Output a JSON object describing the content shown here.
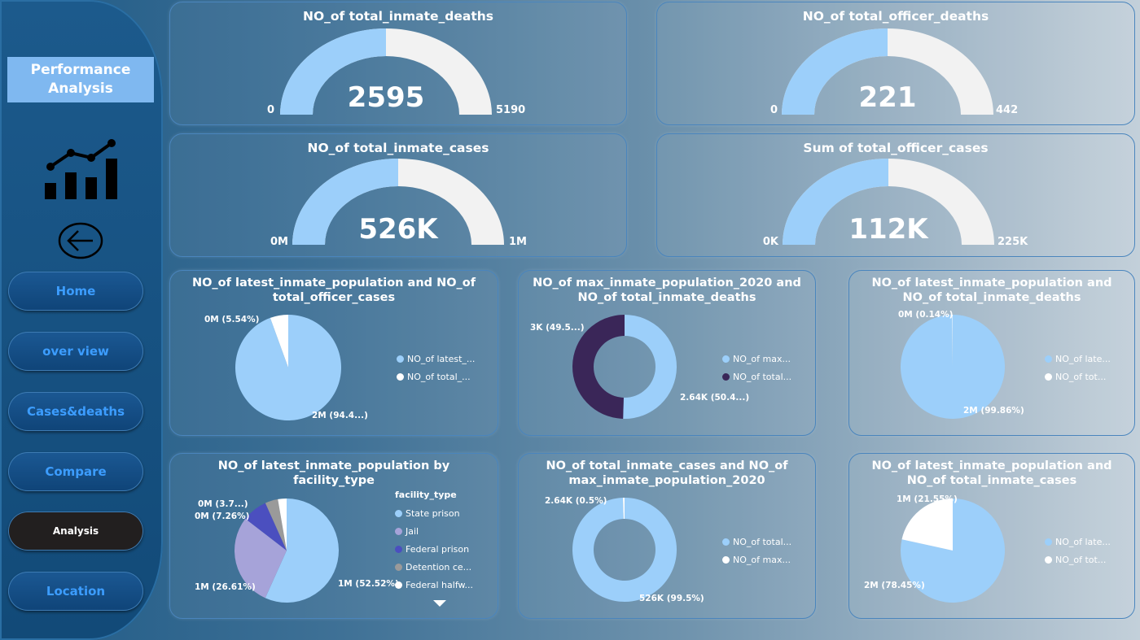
{
  "sidebar": {
    "title": "Performance Analysis",
    "nav": [
      {
        "label": "Home"
      },
      {
        "label": "over view"
      },
      {
        "label": "Cases&deaths"
      },
      {
        "label": "Compare"
      },
      {
        "label": "Analysis",
        "active": true
      },
      {
        "label": "Location"
      }
    ]
  },
  "gauges": [
    {
      "title": "NO_of total_inmate_deaths",
      "value_label": "2595",
      "min_label": "0",
      "max_label": "5190",
      "fraction": 0.5
    },
    {
      "title": "NO_of total_officer_deaths",
      "value_label": "221",
      "min_label": "0",
      "max_label": "442",
      "fraction": 0.5
    },
    {
      "title": "NO_of total_inmate_cases",
      "value_label": "526K",
      "min_label": "0M",
      "max_label": "1M",
      "fraction": 0.5
    },
    {
      "title": "Sum of total_officer_cases",
      "value_label": "112K",
      "min_label": "0K",
      "max_label": "225K",
      "fraction": 0.5
    }
  ],
  "colors": {
    "light_blue": "#9ccffa",
    "gauge_rest": "#f2f2f2",
    "dark_purple": "#3a2658",
    "white": "#ffffff",
    "lavender": "#a6a3d9",
    "indigo": "#4b4fbf",
    "gray": "#9a9a9a"
  },
  "pies": [
    {
      "title": "NO_of latest_inmate_population and NO_of total_officer_cases",
      "legend": [
        "NO_of latest_...",
        "NO_of total_..."
      ],
      "labels": [
        "0M (5.54%)",
        "2M (94.4...)"
      ]
    },
    {
      "title": "NO_of max_inmate_population_2020 and NO_of total_inmate_deaths",
      "legend": [
        "NO_of max...",
        "NO_of total..."
      ],
      "labels": [
        "3K (49.5...)",
        "2.64K (50.4...)"
      ]
    },
    {
      "title": "NO_of latest_inmate_population and NO_of total_inmate_deaths",
      "legend": [
        "NO_of late...",
        "NO_of tot..."
      ],
      "labels": [
        "0M (0.14%)",
        "2M (99.86%)"
      ]
    },
    {
      "title": "NO_of latest_inmate_population by facility_type",
      "legend_title": "facility_type",
      "legend": [
        "State prison",
        "Jail",
        "Federal prison",
        "Detention ce...",
        "Federal halfw..."
      ],
      "labels": [
        "0M (3.7...)",
        "0M (7.26%)",
        "1M (26.61%)",
        "1M (52.52%)"
      ]
    },
    {
      "title": "NO_of total_inmate_cases and NO_of max_inmate_population_2020",
      "legend": [
        "NO_of total...",
        "NO_of max..."
      ],
      "labels": [
        "2.64K (0.5%)",
        "526K (99.5%)"
      ]
    },
    {
      "title": "NO_of latest_inmate_population and NO_of total_inmate_cases",
      "legend": [
        "NO_of late...",
        "NO_of tot..."
      ],
      "labels": [
        "1M (21.55%)",
        "2M (78.45%)"
      ]
    }
  ],
  "chart_data": [
    {
      "type": "pie",
      "title": "NO_of latest_inmate_population and NO_of total_officer_cases",
      "labels": [
        "NO_of latest_...",
        "NO_of total_..."
      ],
      "values": [
        94.46,
        5.54
      ]
    },
    {
      "type": "pie",
      "title": "NO_of max_inmate_population_2020 and NO_of total_inmate_deaths",
      "labels": [
        "NO_of max...",
        "NO_of total..."
      ],
      "values": [
        50.45,
        49.55
      ],
      "donut": true
    },
    {
      "type": "pie",
      "title": "NO_of latest_inmate_population and NO_of total_inmate_deaths",
      "labels": [
        "NO_of late...",
        "NO_of tot..."
      ],
      "values": [
        99.86,
        0.14
      ]
    },
    {
      "type": "pie",
      "title": "NO_of latest_inmate_population by facility_type",
      "labels": [
        "State prison",
        "Jail",
        "Federal prison",
        "Detention ce...",
        "Federal halfw..."
      ],
      "values": [
        52.52,
        26.61,
        7.26,
        3.7,
        2.5
      ]
    },
    {
      "type": "pie",
      "title": "NO_of total_inmate_cases and NO_of max_inmate_population_2020",
      "labels": [
        "NO_of total...",
        "NO_of max..."
      ],
      "values": [
        99.5,
        0.5
      ],
      "donut": true
    },
    {
      "type": "pie",
      "title": "NO_of latest_inmate_population and NO_of total_inmate_cases",
      "labels": [
        "NO_of late...",
        "NO_of tot..."
      ],
      "values": [
        78.45,
        21.55
      ]
    }
  ]
}
